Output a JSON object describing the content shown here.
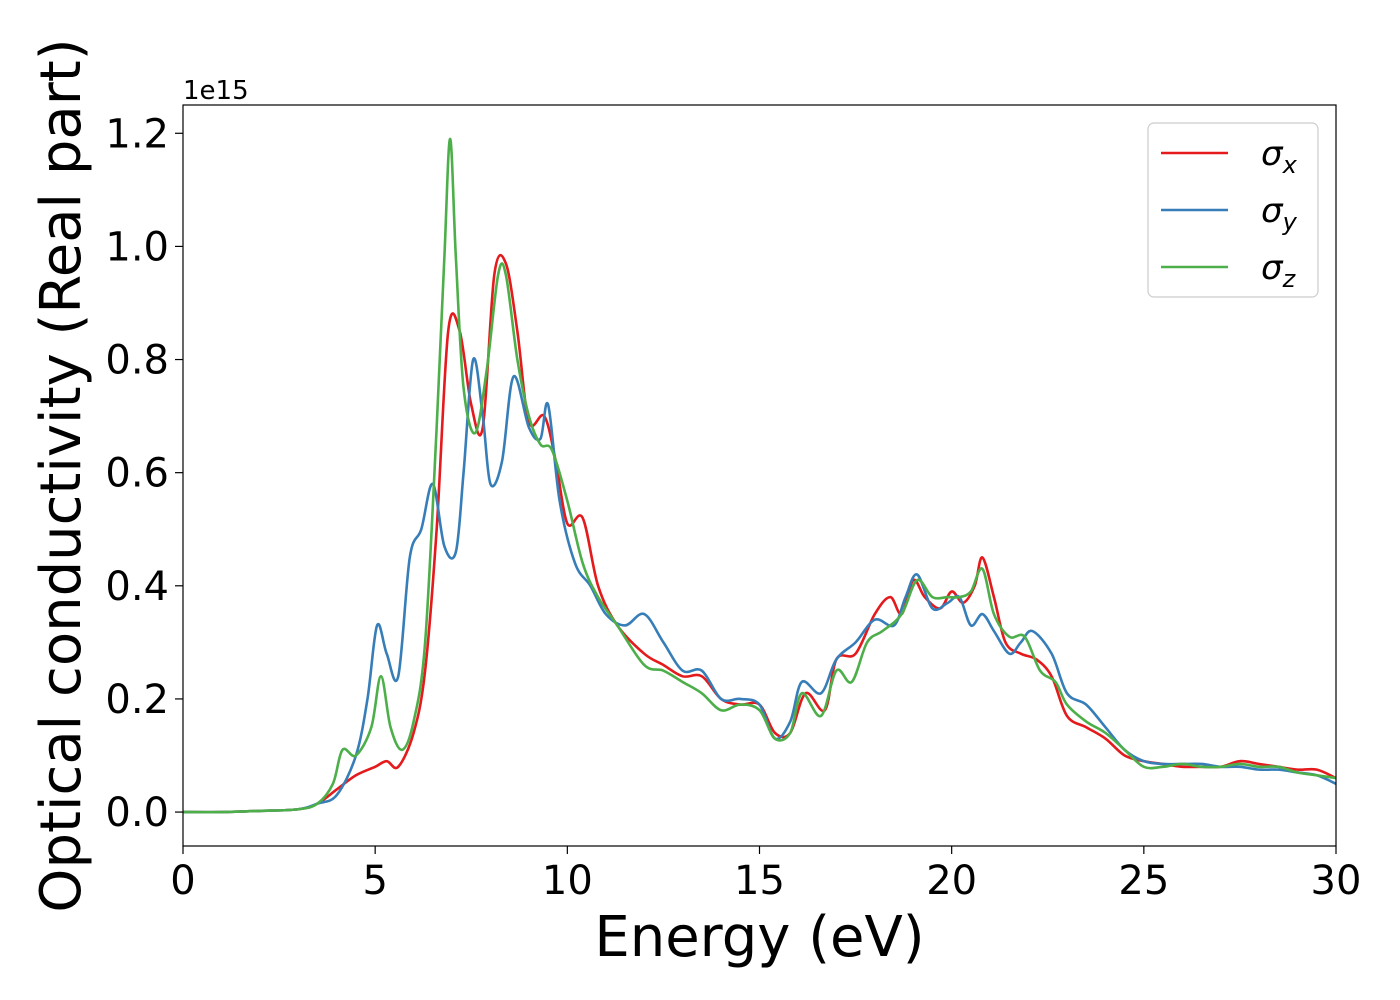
{
  "chart_data": {
    "type": "line",
    "title": "",
    "xlabel": "Energy (eV)",
    "ylabel": "Optical conductivity (Real part)",
    "y_offset_label": "1e15",
    "xlim": [
      0,
      30
    ],
    "ylim": [
      -0.06,
      1.25
    ],
    "x_ticks": [
      0,
      5,
      10,
      15,
      20,
      25,
      30
    ],
    "x_tick_labels": [
      "0",
      "5",
      "10",
      "15",
      "20",
      "25",
      "30"
    ],
    "y_ticks": [
      0.0,
      0.2,
      0.4,
      0.6,
      0.8,
      1.0,
      1.2
    ],
    "y_tick_labels": [
      "0.0",
      "0.2",
      "0.4",
      "0.6",
      "0.8",
      "1.0",
      "1.2"
    ],
    "grid": false,
    "legend_position": "top-right",
    "series": [
      {
        "name": "σx",
        "legend_base": "σ",
        "legend_sub": "x",
        "color": "#e41a1c",
        "x": [
          0,
          1,
          2,
          3,
          3.5,
          4,
          4.5,
          5,
          5.3,
          5.6,
          6,
          6.3,
          6.6,
          6.9,
          7.2,
          7.5,
          7.8,
          8.1,
          8.4,
          8.7,
          9,
          9.4,
          9.7,
          10,
          10.4,
          10.8,
          11.3,
          12,
          12.5,
          13,
          13.5,
          14,
          14.5,
          15,
          15.4,
          15.8,
          16.2,
          16.7,
          17,
          17.5,
          18,
          18.4,
          18.7,
          19,
          19.3,
          19.7,
          20,
          20.3,
          20.6,
          20.8,
          21.1,
          21.4,
          21.8,
          22.2,
          22.6,
          23,
          23.5,
          24,
          24.5,
          25,
          25.5,
          26,
          26.5,
          27,
          27.5,
          28,
          28.5,
          29,
          29.5,
          30
        ],
        "y": [
          0.0,
          0.0,
          0.002,
          0.005,
          0.015,
          0.04,
          0.065,
          0.08,
          0.09,
          0.08,
          0.14,
          0.25,
          0.5,
          0.85,
          0.85,
          0.72,
          0.68,
          0.95,
          0.97,
          0.85,
          0.69,
          0.7,
          0.62,
          0.51,
          0.52,
          0.4,
          0.33,
          0.28,
          0.26,
          0.24,
          0.24,
          0.2,
          0.19,
          0.19,
          0.14,
          0.14,
          0.21,
          0.18,
          0.27,
          0.28,
          0.35,
          0.38,
          0.35,
          0.41,
          0.38,
          0.36,
          0.39,
          0.37,
          0.4,
          0.45,
          0.38,
          0.3,
          0.28,
          0.27,
          0.24,
          0.17,
          0.15,
          0.13,
          0.1,
          0.09,
          0.085,
          0.08,
          0.08,
          0.08,
          0.09,
          0.085,
          0.08,
          0.075,
          0.075,
          0.06
        ]
      },
      {
        "name": "σy",
        "legend_base": "σ",
        "legend_sub": "y",
        "color": "#377eb8",
        "x": [
          0,
          1,
          2,
          3,
          3.5,
          4,
          4.5,
          4.8,
          5.05,
          5.3,
          5.6,
          5.9,
          6.2,
          6.5,
          6.8,
          7.1,
          7.3,
          7.55,
          7.8,
          8.0,
          8.3,
          8.6,
          9,
          9.3,
          9.5,
          9.8,
          10.2,
          10.6,
          11,
          11.5,
          12,
          12.5,
          13,
          13.5,
          14,
          14.5,
          15,
          15.4,
          15.8,
          16.1,
          16.6,
          17,
          17.5,
          18,
          18.5,
          18.8,
          19.1,
          19.5,
          19.9,
          20.2,
          20.5,
          20.8,
          21.1,
          21.5,
          21.8,
          22.1,
          22.6,
          23,
          23.5,
          24,
          24.5,
          25,
          25.5,
          26,
          26.5,
          27,
          27.5,
          28,
          28.5,
          29,
          29.5,
          30
        ],
        "y": [
          0.0,
          0.0,
          0.002,
          0.005,
          0.015,
          0.03,
          0.1,
          0.2,
          0.33,
          0.28,
          0.24,
          0.45,
          0.5,
          0.58,
          0.47,
          0.46,
          0.6,
          0.8,
          0.7,
          0.58,
          0.62,
          0.77,
          0.68,
          0.66,
          0.72,
          0.55,
          0.44,
          0.4,
          0.35,
          0.33,
          0.35,
          0.3,
          0.25,
          0.25,
          0.2,
          0.2,
          0.19,
          0.13,
          0.16,
          0.23,
          0.21,
          0.27,
          0.3,
          0.34,
          0.33,
          0.38,
          0.42,
          0.36,
          0.37,
          0.38,
          0.33,
          0.35,
          0.32,
          0.28,
          0.3,
          0.32,
          0.28,
          0.21,
          0.19,
          0.15,
          0.11,
          0.09,
          0.085,
          0.085,
          0.085,
          0.08,
          0.08,
          0.075,
          0.075,
          0.07,
          0.065,
          0.05
        ]
      },
      {
        "name": "σz",
        "legend_base": "σ",
        "legend_sub": "z",
        "color": "#4daf4a",
        "x": [
          0,
          1,
          2,
          3,
          3.5,
          3.9,
          4.15,
          4.5,
          4.9,
          5.15,
          5.4,
          5.7,
          6.0,
          6.3,
          6.6,
          6.8,
          6.95,
          7.1,
          7.3,
          7.6,
          7.9,
          8.2,
          8.4,
          8.7,
          9,
          9.3,
          9.6,
          10,
          10.4,
          10.8,
          11.3,
          12,
          12.5,
          13,
          13.5,
          14,
          14.5,
          15,
          15.4,
          15.8,
          16.1,
          16.6,
          17,
          17.4,
          17.8,
          18.2,
          18.7,
          19.1,
          19.5,
          19.9,
          20.2,
          20.5,
          20.8,
          21.1,
          21.5,
          21.9,
          22.3,
          22.7,
          23,
          23.5,
          24,
          24.5,
          25,
          25.5,
          26,
          26.5,
          27,
          27.5,
          28,
          28.5,
          29,
          29.5,
          30
        ],
        "y": [
          0.0,
          0.0,
          0.002,
          0.005,
          0.015,
          0.05,
          0.11,
          0.1,
          0.15,
          0.24,
          0.15,
          0.11,
          0.16,
          0.3,
          0.68,
          0.98,
          1.19,
          0.98,
          0.75,
          0.67,
          0.78,
          0.95,
          0.95,
          0.8,
          0.7,
          0.65,
          0.64,
          0.55,
          0.44,
          0.38,
          0.33,
          0.26,
          0.25,
          0.23,
          0.21,
          0.18,
          0.19,
          0.18,
          0.13,
          0.14,
          0.21,
          0.17,
          0.25,
          0.23,
          0.3,
          0.32,
          0.35,
          0.41,
          0.38,
          0.38,
          0.38,
          0.39,
          0.43,
          0.35,
          0.31,
          0.31,
          0.25,
          0.23,
          0.19,
          0.16,
          0.14,
          0.11,
          0.08,
          0.08,
          0.085,
          0.08,
          0.08,
          0.085,
          0.08,
          0.08,
          0.07,
          0.065,
          0.06
        ]
      }
    ]
  }
}
